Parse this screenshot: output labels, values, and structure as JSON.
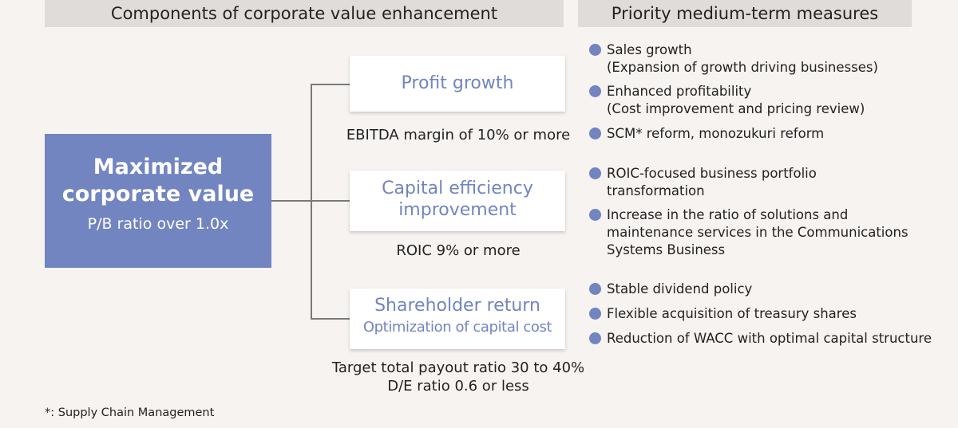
{
  "headers": {
    "left": "Components of corporate value enhancement",
    "right": "Priority medium-term measures"
  },
  "main_box": {
    "title_line1": "Maximized",
    "title_line2": "corporate value",
    "subtitle": "P/B ratio over 1.0x"
  },
  "components": [
    {
      "title": "Profit growth",
      "metric_lines": [
        "EBITDA margin of 10% or more"
      ],
      "measures": [
        {
          "line1": "Sales growth",
          "line2": "(Expansion of growth driving businesses)"
        },
        {
          "line1": "Enhanced profitability",
          "line2": "(Cost improvement and pricing review)"
        },
        {
          "line1": "SCM* reform, monozukuri reform"
        }
      ]
    },
    {
      "title_line1": "Capital efficiency",
      "title_line2": "improvement",
      "metric_lines": [
        "ROIC 9% or more"
      ],
      "measures": [
        {
          "line1": "ROIC-focused business portfolio",
          "line2": "transformation"
        },
        {
          "line1": "Increase in the ratio of solutions and",
          "line2": "maintenance services in the Communications",
          "line3": "Systems Business"
        }
      ]
    },
    {
      "title": "Shareholder return",
      "subtitle": "Optimization of capital cost",
      "metric_lines": [
        "Target total payout ratio 30 to 40%",
        "D/E ratio 0.6 or less"
      ],
      "measures": [
        {
          "line1": "Stable dividend policy"
        },
        {
          "line1": "Flexible acquisition of treasury shares"
        },
        {
          "line1": "Reduction of WACC with optimal capital structure"
        }
      ]
    }
  ],
  "footnote": "*: Supply Chain Management",
  "colors": {
    "accent": "#7285c0",
    "header_bg": "#e0dcd9",
    "background": "#f6f3f1",
    "connector": "#7a7a7a"
  }
}
